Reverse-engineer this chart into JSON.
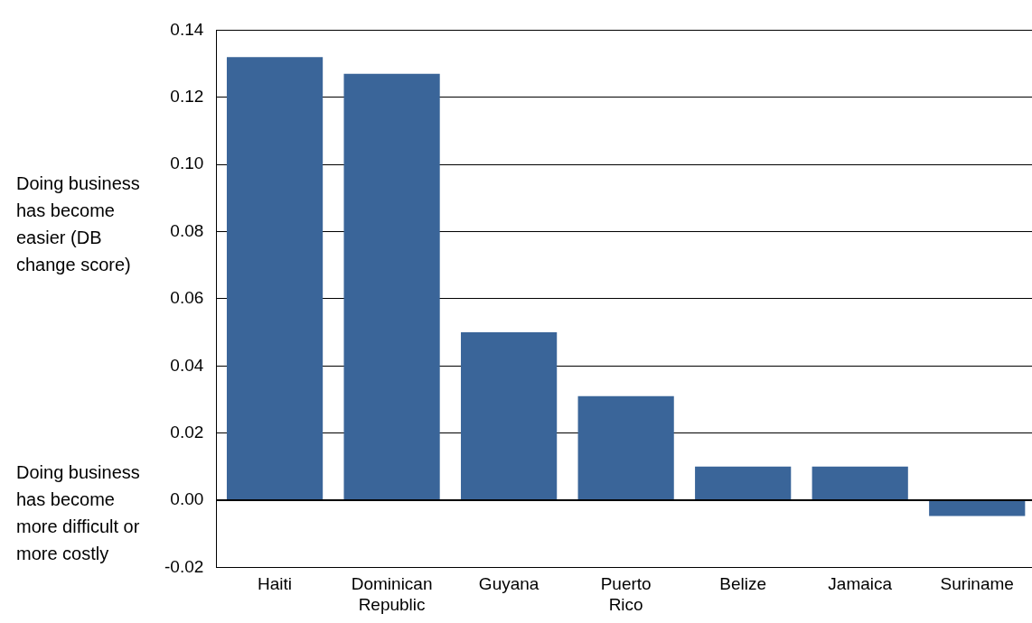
{
  "chart_data": {
    "type": "bar",
    "categories": [
      "Haiti",
      "Dominican Republic",
      "Guyana",
      "Puerto Rico",
      "Belize",
      "Jamaica",
      "Suriname"
    ],
    "values": [
      0.132,
      0.127,
      0.05,
      0.031,
      0.01,
      0.01,
      -0.0047
    ],
    "color": "#3a6599",
    "ylim": [
      -0.02,
      0.14
    ],
    "yticks": [
      {
        "value": -0.02,
        "label": "-0.02"
      },
      {
        "value": 0,
        "label": "0.00"
      },
      {
        "value": 0.02,
        "label": "0.02"
      },
      {
        "value": 0.04,
        "label": "0.04"
      },
      {
        "value": 0.06,
        "label": "0.06"
      },
      {
        "value": 0.08,
        "label": "0.08"
      },
      {
        "value": 0.1,
        "label": "0.10"
      },
      {
        "value": 0.12,
        "label": "0.12"
      },
      {
        "value": 0.14,
        "label": "0.14"
      }
    ],
    "grid": "y",
    "legend": false,
    "annotations": [
      "Doing business has become easier (DB change score)",
      "Doing business has become more difficult or more costly"
    ]
  }
}
